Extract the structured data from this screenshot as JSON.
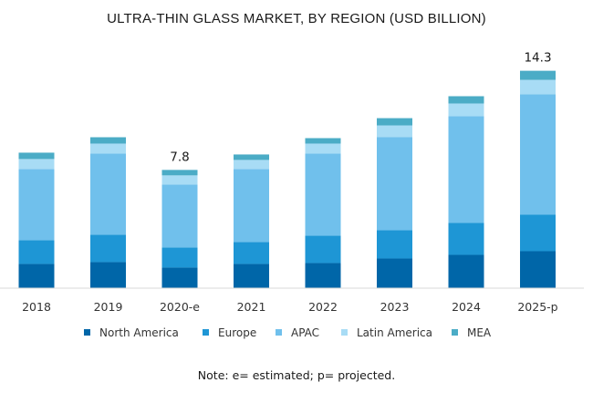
{
  "chart_data": {
    "type": "bar",
    "stacked": true,
    "title": "ULTRA-THIN GLASS MARKET, BY REGION (USD BILLION)",
    "xlabel": "",
    "ylabel": "",
    "ylim": [
      0,
      14.5
    ],
    "grid": false,
    "categories": [
      "2018",
      "2019",
      "2020-e",
      "2021",
      "2022",
      "2023",
      "2024",
      "2025-p"
    ],
    "series": [
      {
        "name": "North America",
        "color": "#0066A8",
        "values": [
          1.57,
          1.69,
          1.33,
          1.57,
          1.63,
          1.93,
          2.17,
          2.41
        ]
      },
      {
        "name": "Europe",
        "color": "#1E96D5",
        "values": [
          1.57,
          1.81,
          1.33,
          1.45,
          1.81,
          1.87,
          2.11,
          2.41
        ]
      },
      {
        "name": "APAC",
        "color": "#70C0EC",
        "values": [
          4.7,
          5.36,
          4.16,
          4.82,
          5.42,
          6.14,
          7.05,
          7.95
        ]
      },
      {
        "name": "Latin America",
        "color": "#A8DCF5",
        "values": [
          0.66,
          0.66,
          0.6,
          0.6,
          0.66,
          0.78,
          0.84,
          0.96
        ]
      },
      {
        "name": "MEA",
        "color": "#4BACC6",
        "values": [
          0.42,
          0.42,
          0.36,
          0.36,
          0.36,
          0.48,
          0.48,
          0.6
        ]
      }
    ],
    "data_labels": [
      {
        "category": "2020-e",
        "text": "7.8"
      },
      {
        "category": "2025-p",
        "text": "14.3"
      }
    ],
    "legend": {
      "position": "bottom"
    },
    "note": "Note: e= estimated; p= projected."
  },
  "colors": {
    "axis": "#d9d9d9",
    "text": "#333333"
  }
}
